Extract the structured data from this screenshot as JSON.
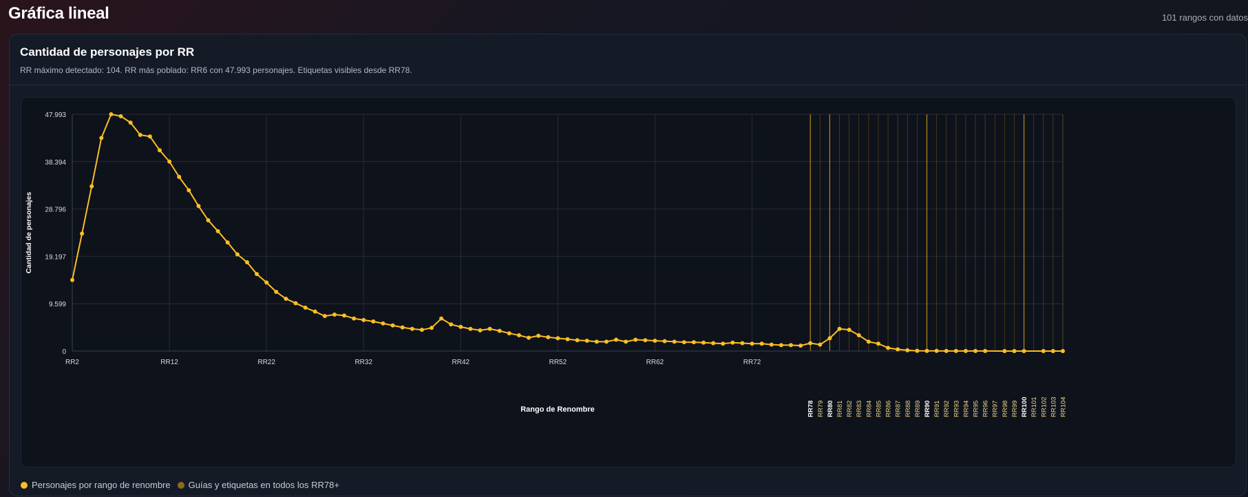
{
  "header": {
    "title": "Gráfica lineal",
    "range_count": "101 rangos con datos"
  },
  "card": {
    "title": "Cantidad de personajes por RR",
    "subtitle": "RR máximo detectado: 104. RR más poblado: RR6 con 47.993 personajes. Etiquetas visibles desde RR78."
  },
  "legend": {
    "series_label": "Personajes por rango de renombre",
    "guides_label": "Guías y etiquetas en todos los RR78+"
  },
  "colors": {
    "line": "#fbbf24",
    "guide": "#a57c12",
    "guide_bright": "#c9981a",
    "grid": "#262c3a",
    "tick_text": "#d8dbe2",
    "label_bright": "#ffffff",
    "label_dim": "#f1d98a"
  },
  "chart_data": {
    "type": "line",
    "title": "",
    "xlabel": "Rango de Renombre",
    "ylabel": "Cantidad de personajes",
    "ylim": [
      0,
      47993
    ],
    "yticks": [
      0,
      9599,
      19197,
      28796,
      38394,
      47993
    ],
    "ytick_labels": [
      "0",
      "9.599",
      "19.197",
      "28.796",
      "38.394",
      "47.993"
    ],
    "x_tick_labels": [
      "RR2",
      "RR12",
      "RR22",
      "RR32",
      "RR42",
      "RR52",
      "RR62",
      "RR72"
    ],
    "x_tick_values": [
      2,
      12,
      22,
      32,
      42,
      52,
      62,
      72
    ],
    "xlim": [
      2,
      104
    ],
    "highlight_labels_from": 78,
    "bold_labels": [
      78,
      80,
      90,
      100
    ],
    "grid": true,
    "legend_position": "bottom-left",
    "series": [
      {
        "name": "Personajes por rango de renombre",
        "points": [
          [
            2,
            14400
          ],
          [
            3,
            23800
          ],
          [
            4,
            33400
          ],
          [
            5,
            43200
          ],
          [
            6,
            47993
          ],
          [
            7,
            47600
          ],
          [
            8,
            46300
          ],
          [
            9,
            43800
          ],
          [
            10,
            43500
          ],
          [
            11,
            40700
          ],
          [
            12,
            38400
          ],
          [
            13,
            35300
          ],
          [
            14,
            32600
          ],
          [
            15,
            29400
          ],
          [
            16,
            26500
          ],
          [
            17,
            24300
          ],
          [
            18,
            22000
          ],
          [
            19,
            19600
          ],
          [
            20,
            18000
          ],
          [
            21,
            15600
          ],
          [
            22,
            13900
          ],
          [
            23,
            12000
          ],
          [
            24,
            10600
          ],
          [
            25,
            9700
          ],
          [
            26,
            8800
          ],
          [
            27,
            8000
          ],
          [
            28,
            7100
          ],
          [
            29,
            7400
          ],
          [
            30,
            7200
          ],
          [
            31,
            6600
          ],
          [
            32,
            6300
          ],
          [
            33,
            6000
          ],
          [
            34,
            5600
          ],
          [
            35,
            5200
          ],
          [
            36,
            4800
          ],
          [
            37,
            4500
          ],
          [
            38,
            4300
          ],
          [
            39,
            4700
          ],
          [
            40,
            6600
          ],
          [
            41,
            5400
          ],
          [
            42,
            4900
          ],
          [
            43,
            4500
          ],
          [
            44,
            4200
          ],
          [
            45,
            4500
          ],
          [
            46,
            4100
          ],
          [
            47,
            3600
          ],
          [
            48,
            3200
          ],
          [
            49,
            2700
          ],
          [
            50,
            3100
          ],
          [
            51,
            2800
          ],
          [
            52,
            2600
          ],
          [
            53,
            2400
          ],
          [
            54,
            2200
          ],
          [
            55,
            2100
          ],
          [
            56,
            1900
          ],
          [
            57,
            1900
          ],
          [
            58,
            2300
          ],
          [
            59,
            1900
          ],
          [
            60,
            2300
          ],
          [
            61,
            2200
          ],
          [
            62,
            2100
          ],
          [
            63,
            2000
          ],
          [
            64,
            1900
          ],
          [
            65,
            1800
          ],
          [
            66,
            1800
          ],
          [
            67,
            1700
          ],
          [
            68,
            1600
          ],
          [
            69,
            1500
          ],
          [
            70,
            1700
          ],
          [
            71,
            1600
          ],
          [
            72,
            1500
          ],
          [
            73,
            1500
          ],
          [
            74,
            1300
          ],
          [
            75,
            1200
          ],
          [
            76,
            1200
          ],
          [
            77,
            1100
          ],
          [
            78,
            1600
          ],
          [
            79,
            1300
          ],
          [
            80,
            2600
          ],
          [
            81,
            4500
          ],
          [
            82,
            4300
          ],
          [
            83,
            3200
          ],
          [
            84,
            1900
          ],
          [
            85,
            1500
          ],
          [
            86,
            650
          ],
          [
            87,
            350
          ],
          [
            88,
            150
          ],
          [
            89,
            60
          ],
          [
            90,
            40
          ],
          [
            91,
            30
          ],
          [
            92,
            20
          ],
          [
            93,
            20
          ],
          [
            94,
            15
          ],
          [
            95,
            10
          ],
          [
            96,
            10
          ],
          [
            98,
            5
          ],
          [
            99,
            5
          ],
          [
            100,
            5
          ],
          [
            102,
            3
          ],
          [
            103,
            3
          ],
          [
            104,
            2
          ]
        ]
      }
    ],
    "guide_labels": [
      {
        "rr": 78,
        "label": "RR78"
      },
      {
        "rr": 79,
        "label": "RR79"
      },
      {
        "rr": 80,
        "label": "RR80"
      },
      {
        "rr": 81,
        "label": "RR81"
      },
      {
        "rr": 82,
        "label": "RR82"
      },
      {
        "rr": 83,
        "label": "RR83"
      },
      {
        "rr": 84,
        "label": "RR84"
      },
      {
        "rr": 85,
        "label": "RR85"
      },
      {
        "rr": 86,
        "label": "RR86"
      },
      {
        "rr": 87,
        "label": "RR87"
      },
      {
        "rr": 88,
        "label": "RR88"
      },
      {
        "rr": 89,
        "label": "RR89"
      },
      {
        "rr": 90,
        "label": "RR90"
      },
      {
        "rr": 91,
        "label": "RR91"
      },
      {
        "rr": 92,
        "label": "RR92"
      },
      {
        "rr": 93,
        "label": "RR93"
      },
      {
        "rr": 94,
        "label": "RR94"
      },
      {
        "rr": 95,
        "label": "RR95"
      },
      {
        "rr": 96,
        "label": "RR96"
      },
      {
        "rr": 97,
        "label": "RR97"
      },
      {
        "rr": 98,
        "label": "RR98"
      },
      {
        "rr": 99,
        "label": "RR99"
      },
      {
        "rr": 100,
        "label": "RR100"
      },
      {
        "rr": 101,
        "label": "RR101"
      },
      {
        "rr": 102,
        "label": "RR102"
      },
      {
        "rr": 103,
        "label": "RR103"
      },
      {
        "rr": 104,
        "label": "RR104"
      }
    ]
  }
}
